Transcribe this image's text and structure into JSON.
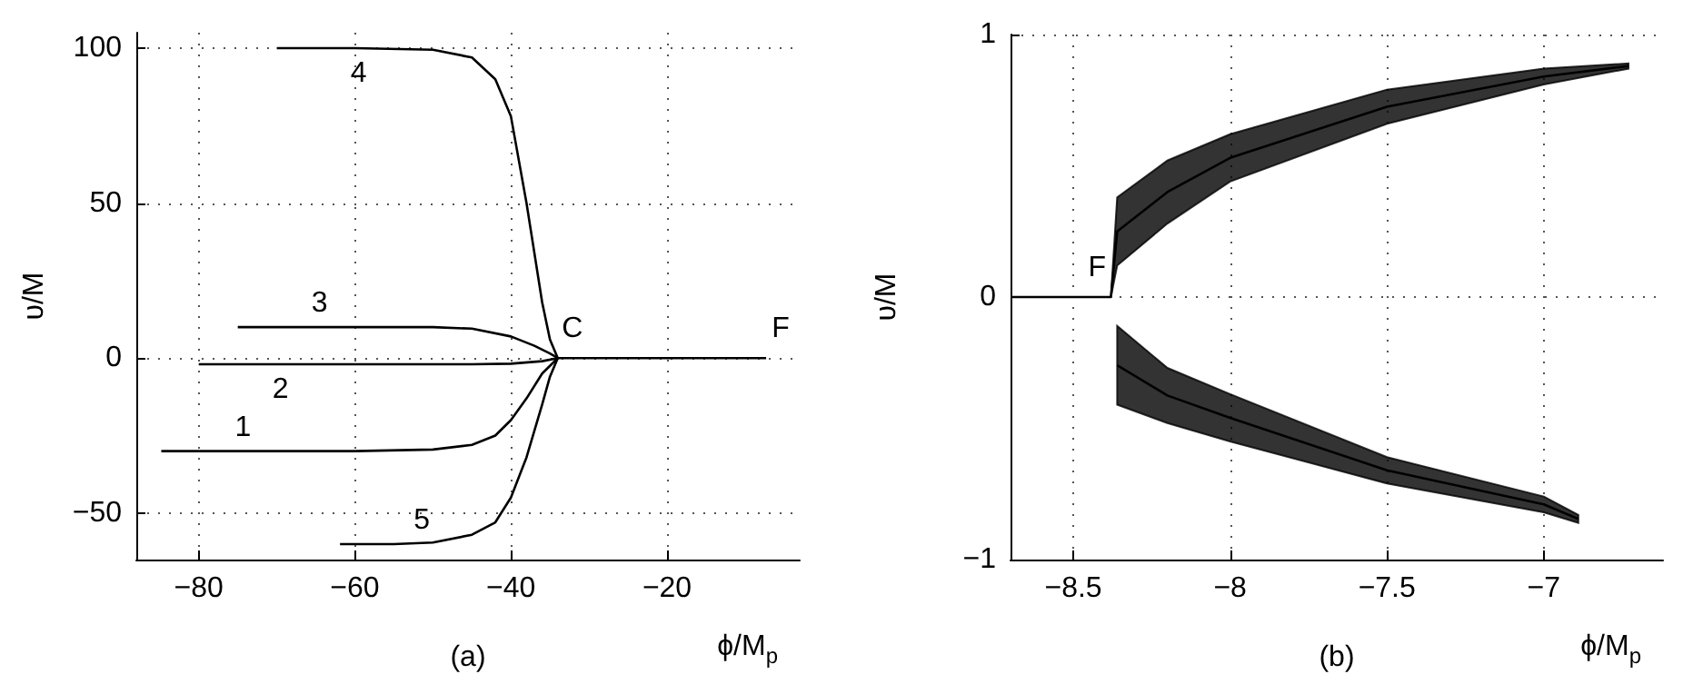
{
  "chart_data": [
    {
      "type": "line",
      "xlabel": "ϕ/M$_{p}$",
      "ylabel": "υ/M",
      "xlim": [
        -88,
        -3
      ],
      "ylim": [
        -65,
        105
      ],
      "xticks": [
        -80,
        -60,
        -40,
        -20
      ],
      "yticks": [
        -50,
        0,
        50,
        100
      ],
      "grid": true,
      "line_style": "solid",
      "marker": "none",
      "series": [
        {
          "name": "1",
          "color": "#000000",
          "x": [
            -84.8,
            -60,
            -50,
            -45,
            -42,
            -40,
            -38,
            -36,
            -34
          ],
          "values": [
            -30,
            -30,
            -29.5,
            -28,
            -25,
            -20,
            -13,
            -5,
            0
          ]
        },
        {
          "name": "2",
          "color": "#000000",
          "x": [
            -80,
            -60,
            -45,
            -40,
            -36,
            -34
          ],
          "values": [
            -2,
            -2,
            -2,
            -1.8,
            -1,
            0
          ]
        },
        {
          "name": "3",
          "color": "#000000",
          "x": [
            -75,
            -60,
            -50,
            -45,
            -40,
            -37,
            -35,
            -34
          ],
          "values": [
            10,
            10,
            10,
            9.5,
            7,
            4,
            1.5,
            0
          ]
        },
        {
          "name": "4",
          "color": "#000000",
          "x": [
            -70,
            -60,
            -50,
            -45,
            -42,
            -40,
            -38,
            -36,
            -35,
            -34,
            -20,
            -7.3
          ],
          "values": [
            100,
            100,
            99.5,
            97,
            90,
            78,
            50,
            18,
            6,
            0,
            0,
            0
          ]
        },
        {
          "name": "5",
          "color": "#000000",
          "x": [
            -61.9,
            -55,
            -50,
            -45,
            -42,
            -40,
            -38,
            -36,
            -35,
            -34
          ],
          "values": [
            -60,
            -60,
            -59.5,
            -57,
            -53,
            -45,
            -32,
            -15,
            -6,
            0
          ]
        }
      ],
      "annotations": [
        "(a)",
        {
          "text": "C",
          "x": -34,
          "y": 0
        },
        {
          "text": "F",
          "x": -7.3,
          "y": 0
        }
      ]
    },
    {
      "type": "line",
      "xlabel": "ϕ/M$_{p}$",
      "ylabel": "υ/M",
      "xlim": [
        -8.7,
        -6.62
      ],
      "ylim": [
        -1,
        1
      ],
      "xticks": [
        -8.5,
        -8,
        -7.5,
        -7
      ],
      "yticks": [
        -1,
        0,
        1
      ],
      "grid": true,
      "line_style": "solid",
      "marker": "none",
      "series": [
        {
          "color": "#000000",
          "x": [
            -8.7,
            -8.38,
            -8.36,
            -8.2,
            -8,
            -7.5,
            -7,
            -6.73
          ],
          "values": [
            0,
            0,
            0.25,
            0.4,
            0.53,
            0.725,
            0.84,
            0.88
          ],
          "lower": [
            0,
            0,
            0.12,
            0.28,
            0.44,
            0.66,
            0.81,
            0.87
          ],
          "upper": [
            0,
            0,
            0.38,
            0.52,
            0.62,
            0.79,
            0.87,
            0.89
          ]
        },
        {
          "color": "#000000",
          "x": [
            -8.36,
            -8.2,
            -8,
            -7.5,
            -7,
            -6.89
          ],
          "values": [
            -0.26,
            -0.375,
            -0.46,
            -0.66,
            -0.79,
            -0.845
          ],
          "lower": [
            -0.41,
            -0.48,
            -0.55,
            -0.71,
            -0.82,
            -0.86
          ],
          "upper": [
            -0.11,
            -0.27,
            -0.37,
            -0.61,
            -0.76,
            -0.83
          ]
        }
      ],
      "annotations": [
        "(b)",
        {
          "text": "F",
          "x": -8.47,
          "y": 0
        }
      ]
    }
  ]
}
